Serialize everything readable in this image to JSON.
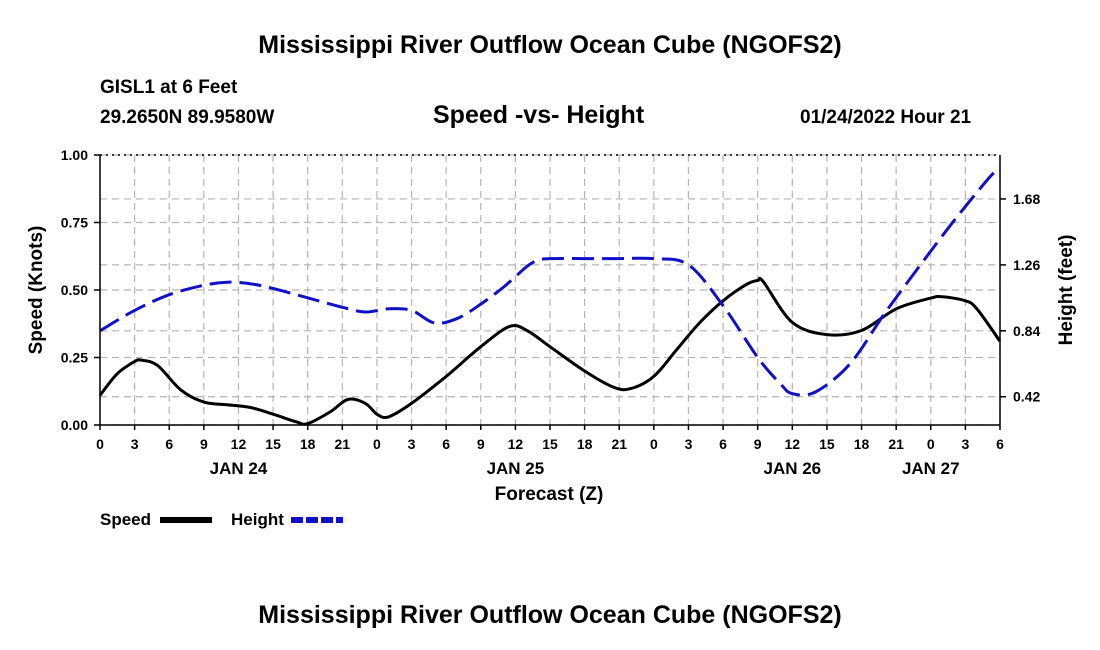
{
  "header": {
    "title": "Mississippi River Outflow Ocean Cube (NGOFS2)",
    "station": "GISL1 at 6 Feet",
    "coords": "29.2650N  89.9580W",
    "subtitle": "Speed -vs- Height",
    "timestamp": "01/24/2022 Hour 21"
  },
  "footer": {
    "title": "Mississippi River Outflow Ocean Cube (NGOFS2)"
  },
  "legend": {
    "speed_label": "Speed",
    "height_label": "Height"
  },
  "colors": {
    "speed": "#000000",
    "height": "#1010c8",
    "grid": "#b4b4b4"
  },
  "chart_data": {
    "type": "line",
    "title": "Speed -vs- Height",
    "xlabel": "Forecast (Z)",
    "ylabel": "Speed (Knots)",
    "y2label": "Height (feet)",
    "x_unit": "hours since JAN 24 00Z",
    "xlim": [
      0,
      78
    ],
    "ylim": [
      0,
      1
    ],
    "y2lim": [
      0.24,
      1.96
    ],
    "x_ticks": [
      0,
      3,
      6,
      9,
      12,
      15,
      18,
      21,
      24,
      27,
      30,
      33,
      36,
      39,
      42,
      45,
      48,
      51,
      54,
      57,
      60,
      63,
      66,
      69,
      72,
      75,
      78
    ],
    "x_tick_labels": [
      "0",
      "3",
      "6",
      "9",
      "12",
      "15",
      "18",
      "21",
      "0",
      "3",
      "6",
      "9",
      "12",
      "15",
      "18",
      "21",
      "0",
      "3",
      "6",
      "9",
      "12",
      "15",
      "18",
      "21",
      "0",
      "3",
      "6"
    ],
    "date_labels": [
      {
        "x": 12,
        "label": "JAN 24"
      },
      {
        "x": 36,
        "label": "JAN 25"
      },
      {
        "x": 60,
        "label": "JAN 26"
      },
      {
        "x": 72,
        "label": "JAN 27"
      }
    ],
    "y_ticks": [
      0,
      0.25,
      0.5,
      0.75,
      1.0
    ],
    "y_tick_labels": [
      "0.00",
      "0.25",
      "0.50",
      "0.75",
      "1.00"
    ],
    "y2_ticks": [
      0.42,
      0.84,
      1.26,
      1.68
    ],
    "y2_tick_labels": [
      "0.42",
      "0.84",
      "1.26",
      "1.68"
    ],
    "series": [
      {
        "name": "Speed",
        "axis": "left",
        "style": "solid",
        "x": [
          0,
          1.5,
          3,
          3.6,
          5,
          7,
          9,
          11,
          13,
          15,
          17,
          18,
          20,
          21.5,
          23,
          24,
          25,
          27,
          30,
          33,
          35.5,
          37,
          39,
          42,
          44.5,
          46,
          48,
          50,
          52,
          54,
          56,
          57,
          57.5,
          60,
          63,
          66,
          69,
          72,
          73,
          75,
          76,
          78
        ],
        "values": [
          0.11,
          0.19,
          0.235,
          0.24,
          0.22,
          0.13,
          0.085,
          0.075,
          0.065,
          0.04,
          0.012,
          0.005,
          0.05,
          0.095,
          0.08,
          0.04,
          0.03,
          0.08,
          0.18,
          0.29,
          0.365,
          0.35,
          0.29,
          0.2,
          0.14,
          0.135,
          0.18,
          0.28,
          0.38,
          0.46,
          0.52,
          0.535,
          0.53,
          0.38,
          0.335,
          0.35,
          0.43,
          0.47,
          0.475,
          0.46,
          0.43,
          0.31
        ]
      },
      {
        "name": "Height",
        "axis": "right",
        "style": "dashed",
        "x": [
          0,
          3,
          6,
          9,
          11,
          13,
          15,
          18,
          21,
          23,
          25,
          27,
          29,
          31,
          33,
          35,
          37,
          38,
          39,
          42,
          45,
          48,
          51,
          54,
          57,
          59,
          60,
          62,
          65,
          68,
          71,
          74,
          77,
          78
        ],
        "values": [
          0.84,
          0.97,
          1.07,
          1.13,
          1.15,
          1.14,
          1.11,
          1.05,
          0.99,
          0.96,
          0.98,
          0.97,
          0.89,
          0.92,
          1.01,
          1.12,
          1.25,
          1.29,
          1.3,
          1.3,
          1.3,
          1.3,
          1.26,
          1.0,
          0.67,
          0.5,
          0.44,
          0.45,
          0.63,
          0.95,
          1.25,
          1.54,
          1.81,
          1.88
        ]
      }
    ]
  }
}
